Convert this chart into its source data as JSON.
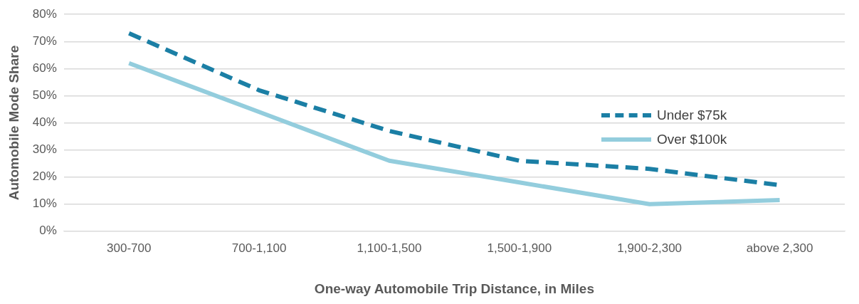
{
  "chart_data": {
    "type": "line",
    "xlabel": "One-way Automobile Trip Distance, in Miles",
    "ylabel": "Automobile Mode Share",
    "categories": [
      "300-700",
      "700-1,100",
      "1,100-1,500",
      "1,500-1,900",
      "1,900-2,300",
      "above 2,300"
    ],
    "series": [
      {
        "name": "Under $75k",
        "color": "#1b7fa5",
        "line_style": "dashed",
        "values": [
          73,
          52,
          37,
          26,
          23,
          17
        ]
      },
      {
        "name": "Over $100k",
        "color": "#93cddd",
        "line_style": "solid",
        "values": [
          62,
          44,
          26,
          18,
          10,
          11.5
        ]
      }
    ],
    "ylim": [
      0,
      80
    ],
    "yticks": [
      {
        "value": 0,
        "label": "0%"
      },
      {
        "value": 10,
        "label": "10%"
      },
      {
        "value": 20,
        "label": "20%"
      },
      {
        "value": 30,
        "label": "30%"
      },
      {
        "value": 40,
        "label": "40%"
      },
      {
        "value": 50,
        "label": "50%"
      },
      {
        "value": 60,
        "label": "60%"
      },
      {
        "value": 70,
        "label": "70%"
      },
      {
        "value": 80,
        "label": "80%"
      }
    ],
    "grid": "y",
    "legend": "right",
    "marker": "none"
  }
}
